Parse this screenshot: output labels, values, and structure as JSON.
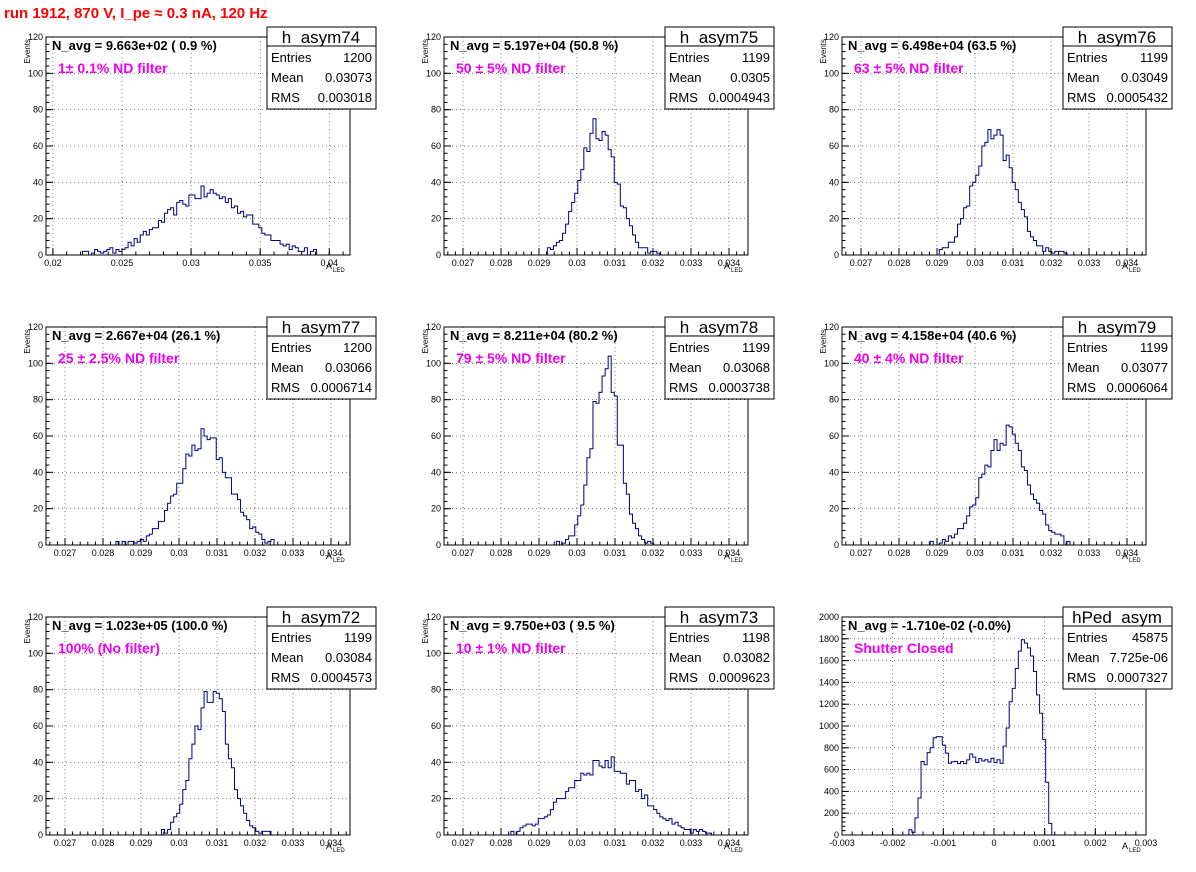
{
  "page": {
    "title": "run 1912,   870 V, I_pe ≈ 0.3 nA, 120 Hz"
  },
  "chart_data": [
    {
      "type": "histogram",
      "name": "h_asym74",
      "n_avg_text": "N_avg = 9.663e+02 ( 0.9 %)",
      "label": "1± 0.1% ND filter",
      "stats": {
        "entries": "1200",
        "mean": "0.03073",
        "rms": "0.003018"
      },
      "xlabel": "A",
      "xlabel_sub": "LED",
      "ylabel": "Events",
      "xlim": [
        0.0195,
        0.0415
      ],
      "ylim": [
        0,
        120
      ],
      "xticks": [
        0.02,
        0.025,
        0.03,
        0.035,
        0.04
      ],
      "xtick_labels": [
        "0.02",
        "0.025",
        "0.03",
        "0.035",
        "0.04"
      ],
      "yticks": [
        0,
        20,
        40,
        60,
        80,
        100,
        120
      ],
      "shape": {
        "mode": "gauss",
        "components": [
          {
            "mu": 0.0312,
            "sigma": 0.003,
            "amp": 34
          }
        ],
        "range": [
          0.022,
          0.039
        ]
      }
    },
    {
      "type": "histogram",
      "name": "h_asym75",
      "n_avg_text": "N_avg = 5.197e+04 (50.8 %)",
      "label": "50 ± 5% ND filter",
      "stats": {
        "entries": "1199",
        "mean": "0.0305",
        "rms": "0.0004943"
      },
      "xlabel": "A",
      "xlabel_sub": "LED",
      "ylabel": "Events",
      "xlim": [
        0.0265,
        0.0345
      ],
      "ylim": [
        0,
        120
      ],
      "xticks": [
        0.027,
        0.028,
        0.029,
        0.03,
        0.031,
        0.032,
        0.033,
        0.034
      ],
      "xtick_labels": [
        "0.027",
        "0.028",
        "0.029",
        "0.03",
        "0.031",
        "0.032",
        "0.033",
        "0.034"
      ],
      "yticks": [
        0,
        20,
        40,
        60,
        80,
        100,
        120
      ],
      "shape": {
        "mode": "gauss",
        "components": [
          {
            "mu": 0.03055,
            "sigma": 0.00048,
            "amp": 72
          }
        ],
        "range": [
          0.0292,
          0.0322
        ]
      }
    },
    {
      "type": "histogram",
      "name": "h_asym76",
      "n_avg_text": "N_avg = 6.498e+04 (63.5 %)",
      "label": "63 ± 5% ND filter",
      "stats": {
        "entries": "1199",
        "mean": "0.03049",
        "rms": "0.0005432"
      },
      "xlabel": "A",
      "xlabel_sub": "LED",
      "ylabel": "Events",
      "xlim": [
        0.0265,
        0.0345
      ],
      "ylim": [
        0,
        120
      ],
      "xticks": [
        0.027,
        0.028,
        0.029,
        0.03,
        0.031,
        0.032,
        0.033,
        0.034
      ],
      "xtick_labels": [
        "0.027",
        "0.028",
        "0.029",
        "0.03",
        "0.031",
        "0.032",
        "0.033",
        "0.034"
      ],
      "yticks": [
        0,
        20,
        40,
        60,
        80,
        100,
        120
      ],
      "shape": {
        "mode": "gauss",
        "components": [
          {
            "mu": 0.0305,
            "sigma": 0.00054,
            "amp": 64
          }
        ],
        "range": [
          0.029,
          0.0324
        ]
      }
    },
    {
      "type": "histogram",
      "name": "h_asym77",
      "n_avg_text": "N_avg = 2.667e+04 (26.1 %)",
      "label": "25 ± 2.5% ND filter",
      "stats": {
        "entries": "1200",
        "mean": "0.03066",
        "rms": "0.0006714"
      },
      "xlabel": "A",
      "xlabel_sub": "LED",
      "ylabel": "Events",
      "xlim": [
        0.0265,
        0.0345
      ],
      "ylim": [
        0,
        120
      ],
      "xticks": [
        0.027,
        0.028,
        0.029,
        0.03,
        0.031,
        0.032,
        0.033,
        0.034
      ],
      "xtick_labels": [
        "0.027",
        "0.028",
        "0.029",
        "0.03",
        "0.031",
        "0.032",
        "0.033",
        "0.034"
      ],
      "yticks": [
        0,
        20,
        40,
        60,
        80,
        100,
        120
      ],
      "shape": {
        "mode": "gauss",
        "components": [
          {
            "mu": 0.03068,
            "sigma": 0.00066,
            "amp": 58
          }
        ],
        "range": [
          0.0282,
          0.0325
        ]
      }
    },
    {
      "type": "histogram",
      "name": "h_asym78",
      "n_avg_text": "N_avg = 8.211e+04 (80.2 %)",
      "label": "79 ± 5% ND filter",
      "stats": {
        "entries": "1199",
        "mean": "0.03068",
        "rms": "0.0003738"
      },
      "xlabel": "A",
      "xlabel_sub": "LED",
      "ylabel": "Events",
      "xlim": [
        0.0265,
        0.0345
      ],
      "ylim": [
        0,
        120
      ],
      "xticks": [
        0.027,
        0.028,
        0.029,
        0.03,
        0.031,
        0.032,
        0.033,
        0.034
      ],
      "xtick_labels": [
        "0.027",
        "0.028",
        "0.029",
        "0.03",
        "0.031",
        "0.032",
        "0.033",
        "0.034"
      ],
      "yticks": [
        0,
        20,
        40,
        60,
        80,
        100,
        120
      ],
      "shape": {
        "mode": "gauss",
        "components": [
          {
            "mu": 0.03075,
            "sigma": 0.00036,
            "amp": 100
          }
        ],
        "range": [
          0.0294,
          0.032
        ]
      }
    },
    {
      "type": "histogram",
      "name": "h_asym79",
      "n_avg_text": "N_avg = 4.158e+04 (40.6 %)",
      "label": "40 ± 4% ND filter",
      "stats": {
        "entries": "1199",
        "mean": "0.03077",
        "rms": "0.0006064"
      },
      "xlabel": "A",
      "xlabel_sub": "LED",
      "ylabel": "Events",
      "xlim": [
        0.0265,
        0.0345
      ],
      "ylim": [
        0,
        120
      ],
      "xticks": [
        0.027,
        0.028,
        0.029,
        0.03,
        0.031,
        0.032,
        0.033,
        0.034
      ],
      "xtick_labels": [
        "0.027",
        "0.028",
        "0.029",
        "0.03",
        "0.031",
        "0.032",
        "0.033",
        "0.034"
      ],
      "yticks": [
        0,
        20,
        40,
        60,
        80,
        100,
        120
      ],
      "shape": {
        "mode": "gauss",
        "components": [
          {
            "mu": 0.0308,
            "sigma": 0.0006,
            "amp": 62
          }
        ],
        "range": [
          0.0288,
          0.0326
        ]
      }
    },
    {
      "type": "histogram",
      "name": "h_asym72",
      "n_avg_text": "N_avg = 1.023e+05 (100.0 %)",
      "label": "100% (No filter)",
      "stats": {
        "entries": "1199",
        "mean": "0.03084",
        "rms": "0.0004573"
      },
      "xlabel": "A",
      "xlabel_sub": "LED",
      "ylabel": "Events",
      "xlim": [
        0.0265,
        0.0345
      ],
      "ylim": [
        0,
        120
      ],
      "xticks": [
        0.027,
        0.028,
        0.029,
        0.03,
        0.031,
        0.032,
        0.033,
        0.034
      ],
      "xtick_labels": [
        "0.027",
        "0.028",
        "0.029",
        "0.03",
        "0.031",
        "0.032",
        "0.033",
        "0.034"
      ],
      "yticks": [
        0,
        20,
        40,
        60,
        80,
        100,
        120
      ],
      "shape": {
        "mode": "gauss",
        "components": [
          {
            "mu": 0.03085,
            "sigma": 0.00045,
            "amp": 80
          }
        ],
        "range": [
          0.0292,
          0.0324
        ]
      }
    },
    {
      "type": "histogram",
      "name": "h_asym73",
      "n_avg_text": "N_avg = 9.750e+03 ( 9.5 %)",
      "label": "10 ± 1% ND filter",
      "stats": {
        "entries": "1198",
        "mean": "0.03082",
        "rms": "0.0009623"
      },
      "xlabel": "A",
      "xlabel_sub": "LED",
      "ylabel": "Events",
      "xlim": [
        0.0265,
        0.0345
      ],
      "ylim": [
        0,
        120
      ],
      "xticks": [
        0.027,
        0.028,
        0.029,
        0.03,
        0.031,
        0.032,
        0.033,
        0.034
      ],
      "xtick_labels": [
        "0.027",
        "0.028",
        "0.029",
        "0.03",
        "0.031",
        "0.032",
        "0.033",
        "0.034"
      ],
      "yticks": [
        0,
        20,
        40,
        60,
        80,
        100,
        120
      ],
      "shape": {
        "mode": "gauss",
        "components": [
          {
            "mu": 0.0307,
            "sigma": 0.00095,
            "amp": 40
          }
        ],
        "range": [
          0.0283,
          0.0335
        ]
      }
    },
    {
      "type": "histogram",
      "name": "hPed_asym",
      "n_avg_text": "N_avg = -1.710e-02 (-0.0%)",
      "label": "Shutter Closed",
      "stats": {
        "entries": "45875",
        "mean": "7.725e-06",
        "rms": "0.0007327"
      },
      "xlabel": "A",
      "xlabel_sub": "LED",
      "ylabel": "",
      "xlim": [
        -0.003,
        0.003
      ],
      "ylim": [
        0,
        2000
      ],
      "xticks": [
        -0.003,
        -0.002,
        -0.001,
        0,
        0.001,
        0.002,
        0.003
      ],
      "xtick_labels": [
        "-0.003",
        "-0.002",
        "-0.001",
        "0",
        "0.001",
        "0.002",
        "0.003"
      ],
      "yticks": [
        0,
        200,
        400,
        600,
        800,
        1000,
        1200,
        1400,
        1600,
        1800,
        2000
      ],
      "shape": {
        "mode": "ped",
        "range": [
          -0.0017,
          0.00125
        ]
      }
    }
  ]
}
